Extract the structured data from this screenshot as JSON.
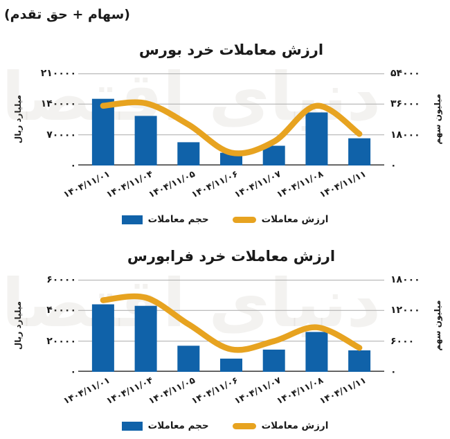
{
  "header_note": "(سهام + حق تقدم)",
  "watermark": "دنیای اقتصاد",
  "legend": {
    "volume_label": "حجم معاملات",
    "value_label": "ارزش معاملات"
  },
  "colors": {
    "bar": "#1062A9",
    "line": "#E7A320",
    "grid": "#B3B3B3",
    "baseline": "#444444",
    "text": "#1A1A1A"
  },
  "chart_data": [
    {
      "type": "bar",
      "subtype": "bar-line-combo",
      "title": "ارزش معاملات خرد بورس",
      "categories": [
        "۱۴۰۴/۱۱/۰۱",
        "۱۴۰۴/۱۱/۰۴",
        "۱۴۰۴/۱۱/۰۵",
        "۱۴۰۴/۱۱/۰۶",
        "۱۴۰۴/۱۱/۰۷",
        "۱۴۰۴/۱۱/۰۸",
        "۱۴۰۴/۱۱/۱۱"
      ],
      "series": [
        {
          "name": "حجم معاملات",
          "type": "bar",
          "axis": "left",
          "values": [
            152000,
            113000,
            53000,
            29000,
            45000,
            121000,
            62000
          ]
        },
        {
          "name": "ارزش معاملات",
          "type": "line",
          "axis": "right",
          "values": [
            35000,
            36500,
            24000,
            7500,
            14000,
            35000,
            18500
          ]
        }
      ],
      "left_axis": {
        "label": "میلیارد ریال",
        "min": 0,
        "max": 210000,
        "ticks": [
          0,
          70000,
          140000,
          210000
        ],
        "tick_labels": [
          "۰",
          "۷۰۰۰۰",
          "۱۴۰۰۰۰",
          "۲۱۰۰۰۰"
        ]
      },
      "right_axis": {
        "label": "میلیون سهم",
        "min": 0,
        "max": 54000,
        "ticks": [
          0,
          18000,
          36000,
          54000
        ],
        "tick_labels": [
          "۰",
          "۱۸۰۰۰",
          "۳۶۰۰۰",
          "۵۴۰۰۰"
        ]
      },
      "grid": true,
      "legend_position": "bottom"
    },
    {
      "type": "bar",
      "subtype": "bar-line-combo",
      "title": "ارزش معاملات خرد فرابورس",
      "categories": [
        "۱۴۰۴/۱۱/۰۱",
        "۱۴۰۴/۱۱/۰۴",
        "۱۴۰۴/۱۱/۰۵",
        "۱۴۰۴/۱۱/۰۶",
        "۱۴۰۴/۱۱/۰۷",
        "۱۴۰۴/۱۱/۰۸",
        "۱۴۰۴/۱۱/۱۱"
      ],
      "series": [
        {
          "name": "حجم معاملات",
          "type": "bar",
          "axis": "left",
          "values": [
            44000,
            43000,
            17000,
            8600,
            14500,
            26000,
            14000
          ]
        },
        {
          "name": "ارزش معاملات",
          "type": "line",
          "axis": "right",
          "values": [
            14000,
            14500,
            9300,
            4400,
            6000,
            8700,
            4700
          ]
        }
      ],
      "left_axis": {
        "label": "میلیارد ریال",
        "min": 0,
        "max": 60000,
        "ticks": [
          0,
          20000,
          40000,
          60000
        ],
        "tick_labels": [
          "۰",
          "۲۰۰۰۰",
          "۴۰۰۰۰",
          "۶۰۰۰۰"
        ]
      },
      "right_axis": {
        "label": "میلیون سهم",
        "min": 0,
        "max": 18000,
        "ticks": [
          0,
          6000,
          12000,
          18000
        ],
        "tick_labels": [
          "۰",
          "۶۰۰۰",
          "۱۲۰۰۰",
          "۱۸۰۰۰"
        ]
      },
      "grid": true,
      "legend_position": "bottom"
    }
  ]
}
